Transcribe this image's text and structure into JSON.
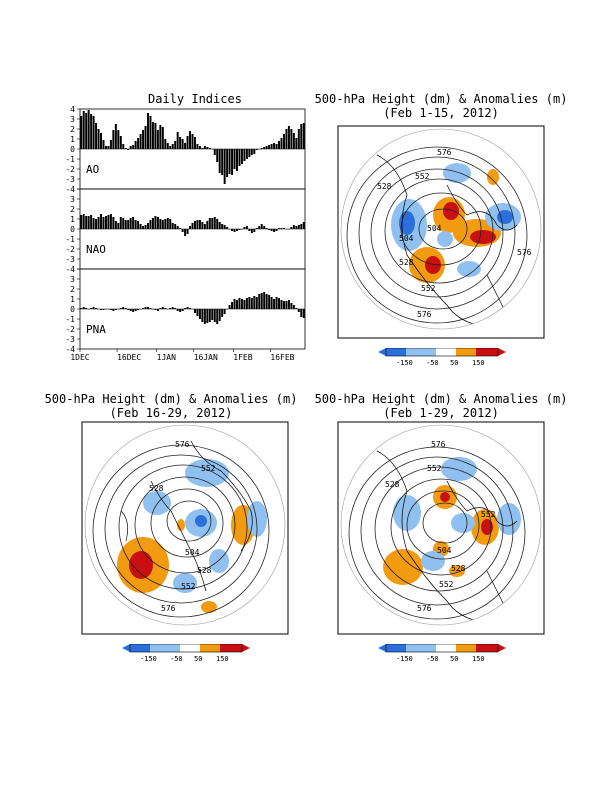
{
  "colors": {
    "strong_neg": "#2a6fdc",
    "neg": "#8fc0ef",
    "pos": "#f29a10",
    "strong_pos": "#c81010",
    "contour": "#222222",
    "land": "#000000"
  },
  "titles": {
    "indices": "Daily Indices",
    "map1_line1": "500-hPa Height (dm) & Anomalies (m)",
    "map1_line2": "(Feb 1-15, 2012)",
    "map2_line1": "500-hPa Height (dm) & Anomalies (m)",
    "map2_line2": "(Feb 16-29, 2012)",
    "map3_line1": "500-hPa Height (dm) & Anomalies (m)",
    "map3_line2": "(Feb 1-29, 2012)"
  },
  "colorbar": {
    "labels": [
      "-150",
      "-50",
      "50",
      "150"
    ]
  },
  "contour_labels": {
    "map1": [
      "576",
      "552",
      "528",
      "504",
      "504",
      "528",
      "552",
      "576",
      "576"
    ],
    "map2": [
      "576",
      "552",
      "528",
      "504",
      "528",
      "552",
      "576"
    ],
    "map3": [
      "576",
      "552",
      "528",
      "504",
      "552",
      "528",
      "552",
      "576"
    ]
  },
  "chart_data": [
    {
      "type": "bar",
      "title": "Daily Indices",
      "x_tick_labels": [
        "1DEC",
        "16DEC",
        "1JAN",
        "16JAN",
        "1FEB",
        "16FEB"
      ],
      "panels": [
        {
          "name": "AO",
          "ylim": [
            -4,
            4
          ],
          "y_ticks": [
            "-4",
            "-3",
            "-2",
            "-1",
            "0",
            "1",
            "2",
            "3",
            "4"
          ],
          "values": [
            3.3,
            3.8,
            3.6,
            3.9,
            3.5,
            3.3,
            2.6,
            2.0,
            1.6,
            0.9,
            0.3,
            0.3,
            0.9,
            1.9,
            2.5,
            1.9,
            1.3,
            0.5,
            0.1,
            -0.1,
            0.3,
            0.4,
            0.8,
            1.1,
            1.5,
            1.9,
            2.3,
            3.6,
            3.3,
            2.7,
            2.6,
            1.9,
            2.4,
            2.2,
            1.0,
            0.6,
            0.3,
            0.5,
            0.8,
            1.7,
            1.2,
            1.0,
            0.6,
            1.3,
            1.8,
            1.5,
            1.2,
            0.5,
            0.3,
            0.1,
            0.3,
            0.2,
            0.1,
            0.0,
            -0.6,
            -1.3,
            -2.4,
            -2.6,
            -3.5,
            -2.8,
            -2.5,
            -2.6,
            -2.0,
            -2.2,
            -1.7,
            -1.5,
            -1.2,
            -1.0,
            -0.8,
            -0.6,
            -0.5,
            -0.1,
            0.0,
            0.1,
            0.2,
            0.3,
            0.4,
            0.5,
            0.6,
            0.5,
            0.8,
            1.1,
            1.5,
            2.0,
            2.3,
            2.0,
            1.6,
            1.1,
            2.0,
            2.5,
            2.6
          ]
        },
        {
          "name": "NAO",
          "ylim": [
            -4,
            4
          ],
          "y_ticks": [
            "-4",
            "-3",
            "-2",
            "-1",
            "0",
            "1",
            "2",
            "3",
            "4"
          ],
          "values": [
            1.4,
            1.5,
            1.3,
            1.3,
            1.4,
            1.1,
            1.0,
            1.2,
            1.5,
            1.2,
            1.3,
            1.4,
            1.5,
            1.2,
            0.8,
            0.6,
            1.2,
            1.1,
            0.9,
            0.9,
            1.1,
            1.2,
            0.9,
            0.8,
            0.5,
            0.3,
            0.4,
            0.6,
            0.9,
            1.1,
            1.3,
            1.2,
            1.0,
            0.9,
            1.0,
            1.1,
            1.0,
            0.6,
            0.5,
            0.3,
            0.1,
            -0.3,
            -0.7,
            -0.5,
            0.3,
            0.6,
            0.8,
            0.9,
            0.9,
            0.7,
            0.5,
            0.8,
            1.1,
            1.1,
            1.2,
            1.0,
            0.7,
            0.5,
            0.4,
            0.2,
            0.0,
            -0.2,
            -0.3,
            -0.2,
            -0.1,
            0.0,
            0.2,
            0.3,
            -0.2,
            -0.4,
            -0.3,
            0.1,
            0.3,
            0.5,
            0.3,
            0.1,
            -0.1,
            -0.2,
            -0.3,
            -0.2,
            0.1,
            0.1,
            0.1,
            0.0,
            0.0,
            0.2,
            0.4,
            0.3,
            0.4,
            0.5,
            0.7
          ]
        },
        {
          "name": "PNA",
          "ylim": [
            -4,
            4
          ],
          "y_ticks": [
            "-4",
            "-3",
            "-2",
            "-1",
            "0",
            "1",
            "2",
            "3",
            "4"
          ],
          "values": [
            0.1,
            0.2,
            0.1,
            0.0,
            0.1,
            0.2,
            0.1,
            0.0,
            -0.1,
            -0.1,
            0.0,
            0.0,
            -0.1,
            -0.2,
            -0.1,
            0.0,
            0.1,
            0.2,
            0.1,
            -0.1,
            -0.2,
            -0.3,
            -0.2,
            -0.1,
            0.0,
            0.1,
            0.2,
            0.2,
            0.1,
            0.0,
            -0.1,
            -0.2,
            0.1,
            0.2,
            0.1,
            0.0,
            0.1,
            0.2,
            0.1,
            -0.2,
            -0.3,
            -0.2,
            0.1,
            0.2,
            0.1,
            0.0,
            -0.4,
            -0.7,
            -1.0,
            -1.3,
            -1.5,
            -1.4,
            -1.3,
            -1.1,
            -1.3,
            -1.5,
            -1.2,
            -0.8,
            -0.5,
            0.0,
            0.4,
            0.7,
            1.0,
            0.9,
            1.1,
            1.0,
            0.9,
            1.1,
            1.2,
            1.1,
            1.3,
            1.2,
            1.5,
            1.6,
            1.7,
            1.5,
            1.4,
            1.2,
            1.0,
            1.2,
            1.1,
            0.9,
            0.8,
            0.8,
            0.9,
            0.6,
            0.4,
            0.1,
            -0.3,
            -0.8,
            -0.9
          ]
        }
      ]
    }
  ]
}
